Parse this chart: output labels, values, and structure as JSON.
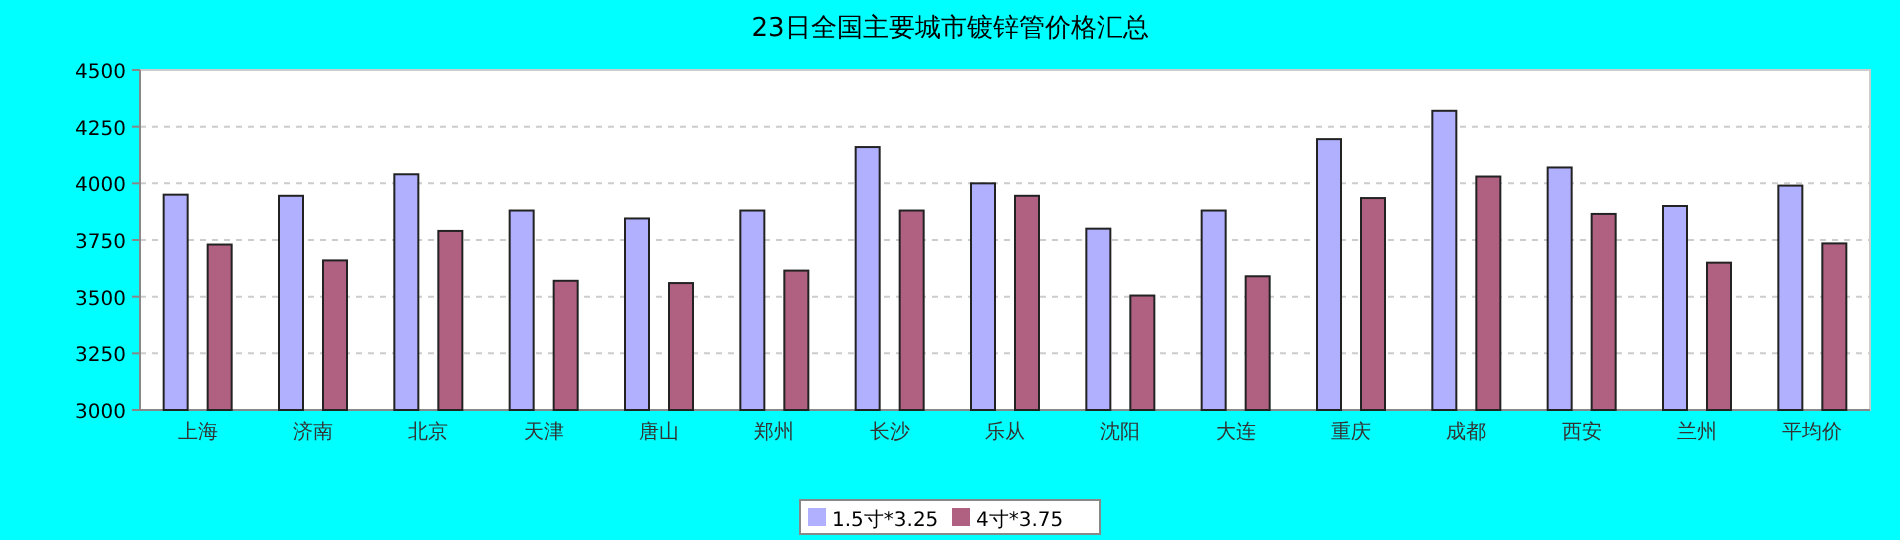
{
  "chart_data": {
    "type": "bar",
    "title": "23日全国主要城市镀锌管价格汇总",
    "categories": [
      "上海",
      "济南",
      "北京",
      "天津",
      "唐山",
      "郑州",
      "长沙",
      "乐从",
      "沈阳",
      "大连",
      "重庆",
      "成都",
      "西安",
      "兰州",
      "平均价"
    ],
    "series": [
      {
        "name": "1.5寸*3.25",
        "color": "#b0b0ff",
        "values": [
          3950,
          3945,
          4040,
          3880,
          3845,
          3880,
          4160,
          4000,
          3800,
          3880,
          4195,
          4320,
          4070,
          3900,
          3990
        ]
      },
      {
        "name": "4寸*3.75",
        "color": "#b06080",
        "values": [
          3730,
          3660,
          3790,
          3570,
          3560,
          3615,
          3880,
          3945,
          3505,
          3590,
          3935,
          4030,
          3865,
          3650,
          3735
        ]
      }
    ],
    "ylim": [
      3000,
      4500
    ],
    "yticks": [
      3000,
      3250,
      3500,
      3750,
      4000,
      4250,
      4500
    ],
    "grid": "y",
    "legend": "bottom"
  }
}
